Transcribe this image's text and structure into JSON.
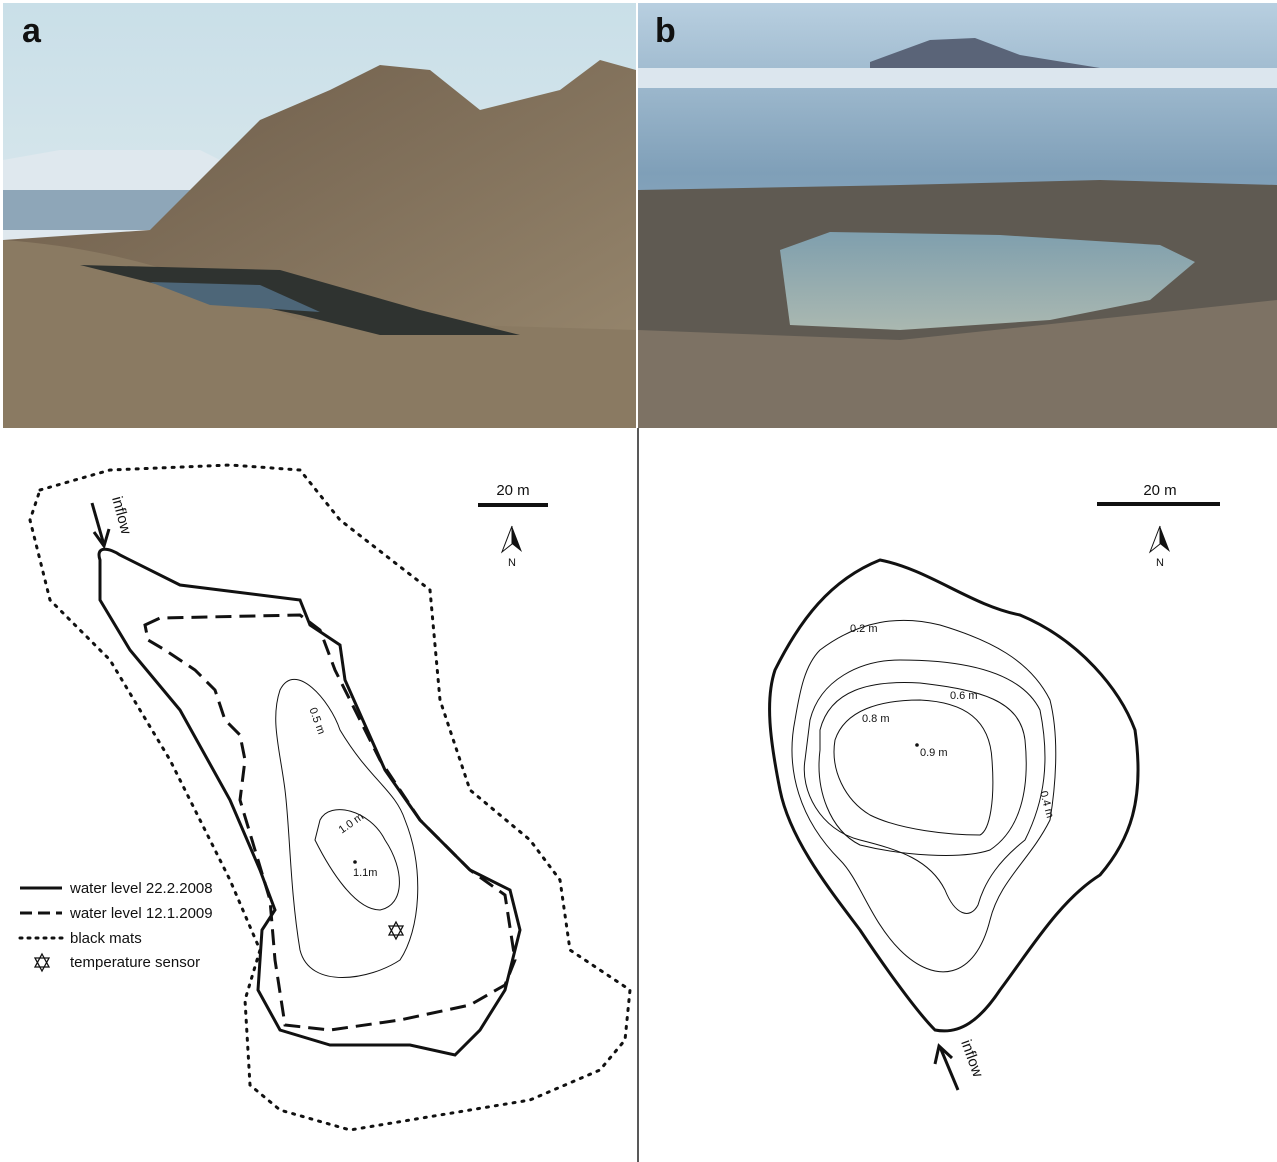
{
  "panels": [
    {
      "label": "a",
      "scale_bar": "20 m",
      "north": "N",
      "inflow": "inflow",
      "contour_labels": [
        "0.5 m",
        "1.0 m",
        "1.1m"
      ],
      "legend": [
        "water level 22.2.2008",
        "water level 12.1.2009",
        "black mats",
        "temperature sensor"
      ]
    },
    {
      "label": "b",
      "scale_bar": "20 m",
      "north": "N",
      "inflow": "inflow",
      "contour_labels": [
        "0.2 m",
        "0.4 m",
        "0.6 m",
        "0.8 m",
        "0.9 m"
      ]
    }
  ]
}
